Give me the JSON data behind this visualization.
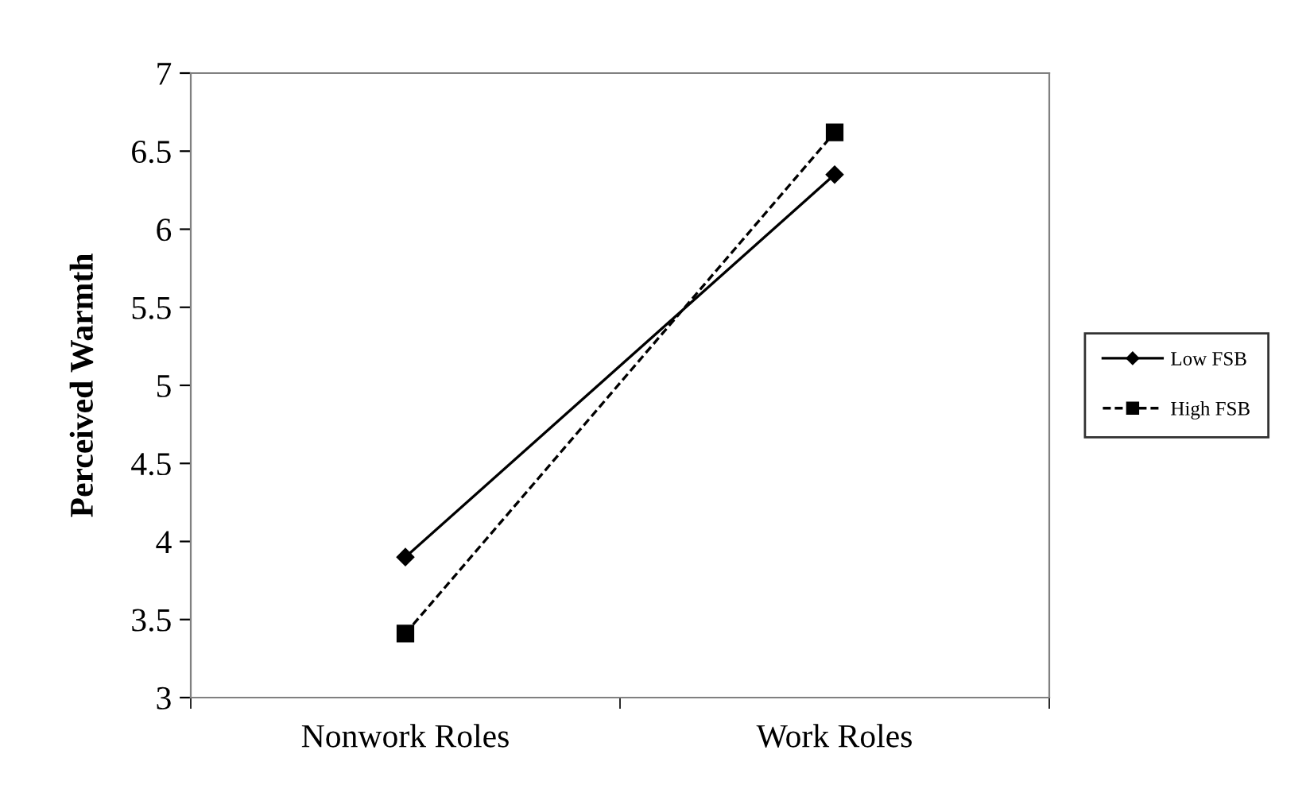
{
  "chart_data": {
    "type": "line",
    "ylabel": "Perceived Warmth",
    "categories": [
      "Nonwork Roles",
      "Work Roles"
    ],
    "series": [
      {
        "name": "Low FSB",
        "color": "#000000",
        "values": [
          3.9,
          6.35
        ],
        "marker": "diamond",
        "line_style": "solid"
      },
      {
        "name": "High FSB",
        "color": "#000000",
        "values": [
          3.41,
          6.62
        ],
        "marker": "square",
        "line_style": "dashed"
      }
    ],
    "ylim": [
      3,
      7
    ],
    "yticks": [
      3,
      3.5,
      4,
      4.5,
      5,
      5.5,
      6,
      6.5,
      7
    ],
    "grid": false,
    "legend": "right"
  }
}
